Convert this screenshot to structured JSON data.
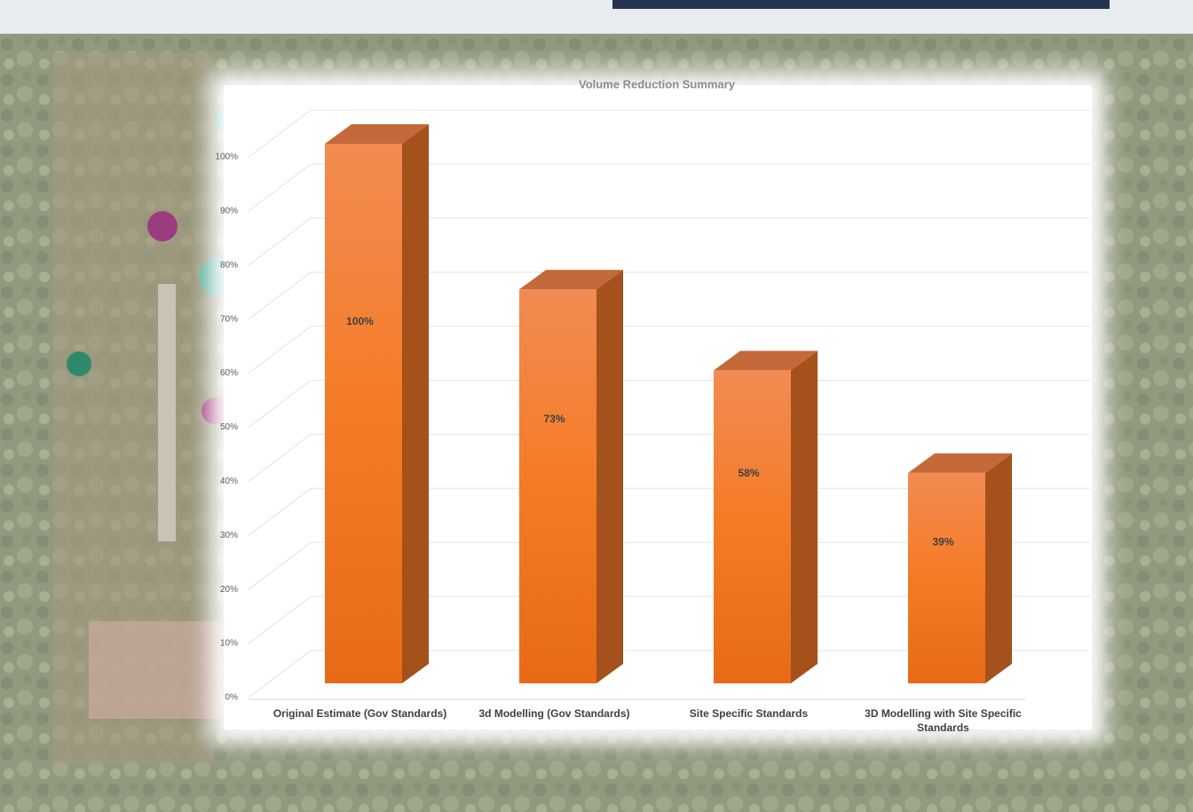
{
  "chart_data": {
    "type": "bar3d",
    "title": "Volume Reduction Summary",
    "categories": [
      "Original Estimate (Gov Standards)",
      "3d Modelling (Gov Standards)",
      "Site Specific Standards",
      "3D Modelling with Site Specific Standards"
    ],
    "values": [
      100,
      73,
      58,
      39
    ],
    "value_labels": [
      "100%",
      "73%",
      "58%",
      "39%"
    ],
    "color": "#f47b25",
    "ylim": [
      0,
      100
    ],
    "yticks": [
      {
        "value": 0,
        "label": "0%"
      },
      {
        "value": 10,
        "label": "10%"
      },
      {
        "value": 20,
        "label": "20%"
      },
      {
        "value": 30,
        "label": "30%"
      },
      {
        "value": 40,
        "label": "40%"
      },
      {
        "value": 50,
        "label": "50%"
      },
      {
        "value": 60,
        "label": "60%"
      },
      {
        "value": 70,
        "label": "70%"
      },
      {
        "value": 80,
        "label": "80%"
      },
      {
        "value": 90,
        "label": "90%"
      },
      {
        "value": 100,
        "label": "100%"
      }
    ],
    "grid": true
  }
}
